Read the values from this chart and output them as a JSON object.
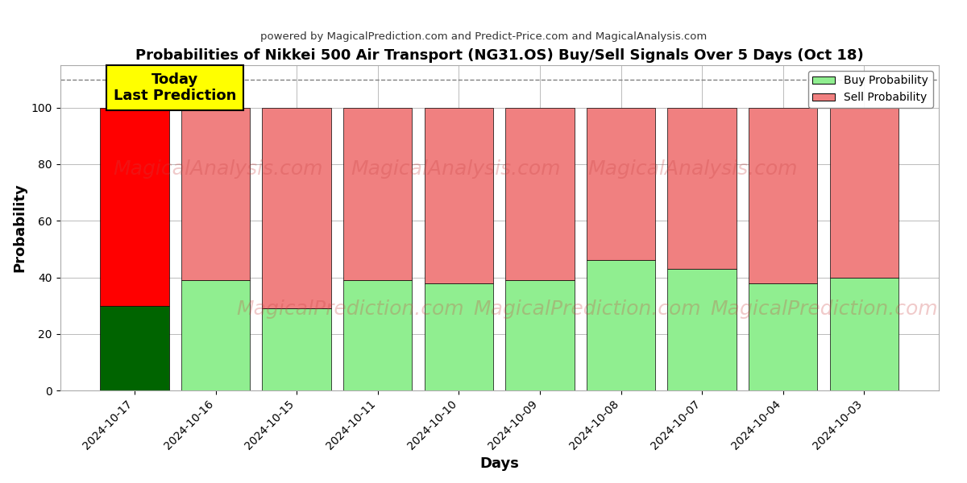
{
  "title": "Probabilities of Nikkei 500 Air Transport (NG31.OS) Buy/Sell Signals Over 5 Days (Oct 18)",
  "subtitle": "powered by MagicalPrediction.com and Predict-Price.com and MagicalAnalysis.com",
  "xlabel": "Days",
  "ylabel": "Probability",
  "categories": [
    "2024-10-17",
    "2024-10-16",
    "2024-10-15",
    "2024-10-11",
    "2024-10-10",
    "2024-10-09",
    "2024-10-08",
    "2024-10-07",
    "2024-10-04",
    "2024-10-03"
  ],
  "buy_values": [
    30,
    39,
    29,
    39,
    38,
    39,
    46,
    43,
    38,
    40
  ],
  "sell_values": [
    70,
    61,
    71,
    61,
    62,
    61,
    54,
    57,
    62,
    60
  ],
  "buy_color_today": "#006400",
  "sell_color_today": "#ff0000",
  "buy_color_rest": "#90EE90",
  "sell_color_rest": "#f08080",
  "today_annotation_text": "Today\nLast Prediction",
  "today_annotation_bg": "#ffff00",
  "dashed_line_y": 110,
  "ylim": [
    0,
    115
  ],
  "yticks": [
    0,
    20,
    40,
    60,
    80,
    100
  ],
  "legend_buy_label": "Buy Probability",
  "legend_sell_label": "Sell Probability",
  "background_color": "#ffffff",
  "grid_color": "#bbbbbb",
  "watermark_line1": "MagicalAnalysis.com",
  "watermark_line2": "MagicalPrediction.com"
}
